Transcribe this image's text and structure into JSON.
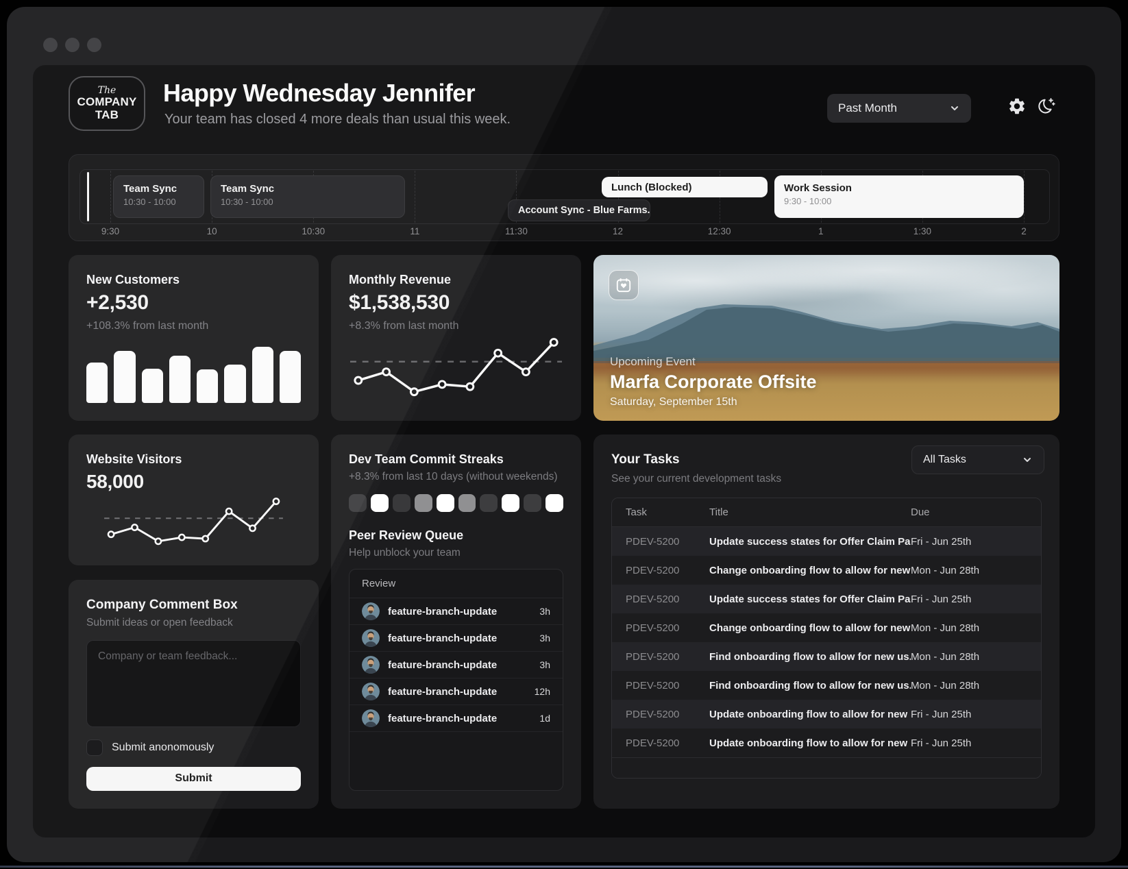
{
  "header": {
    "logo_line1": "The",
    "logo_line2": "COMPANY",
    "logo_line3": "TAB",
    "greeting": "Happy Wednesday Jennifer",
    "subtitle": "Your team has closed 4 more deals than usual this week.",
    "period_select": "Past Month"
  },
  "timeline": {
    "ticks": [
      "9:30",
      "10",
      "10:30",
      "11",
      "11:30",
      "12",
      "12:30",
      "1",
      "1:30",
      "2"
    ],
    "events": [
      {
        "title": "Team Sync",
        "time": "10:30 - 10:00",
        "variant": "dark",
        "compact": false
      },
      {
        "title": "Team Sync",
        "time": "10:30 - 10:00",
        "variant": "dark",
        "compact": false
      },
      {
        "title": "Account Sync - Blue Farms...",
        "time": "",
        "variant": "dark",
        "compact": true
      },
      {
        "title": "Lunch (Blocked)",
        "time": "",
        "variant": "light",
        "compact": true
      },
      {
        "title": "Work Session",
        "time": "9:30 - 10:00",
        "variant": "light",
        "compact": false
      }
    ]
  },
  "new_customers": {
    "title": "New Customers",
    "value": "+2,530",
    "delta": "+108.3% from last month"
  },
  "monthly_revenue": {
    "title": "Monthly Revenue",
    "value": "$1,538,530",
    "delta": "+8.3% from last month"
  },
  "website_visitors": {
    "title": "Website Visitors",
    "value": "58,000"
  },
  "upcoming_event": {
    "label": "Upcoming Event",
    "title": "Marfa Corporate Offsite",
    "date": "Saturday, September 15th"
  },
  "commit_streaks": {
    "title": "Dev Team Commit Streaks",
    "subtitle": "+8.3% from last 10 days (without weekends)",
    "squares": [
      "#3d3d3f",
      "#ffffff",
      "#39393b",
      "#909092",
      "#ffffff",
      "#909092",
      "#3d3d3f",
      "#ffffff",
      "#3d3d3f",
      "#ffffff"
    ]
  },
  "peer_review": {
    "title": "Peer Review Queue",
    "subtitle": "Help unblock your team",
    "column": "Review",
    "rows": [
      {
        "branch": "feature-branch-update",
        "age": "3h"
      },
      {
        "branch": "feature-branch-update",
        "age": "3h"
      },
      {
        "branch": "feature-branch-update",
        "age": "3h"
      },
      {
        "branch": "feature-branch-update",
        "age": "12h"
      },
      {
        "branch": "feature-branch-update",
        "age": "1d"
      }
    ]
  },
  "comment_box": {
    "title": "Company Comment Box",
    "subtitle": "Submit ideas or open feedback",
    "placeholder": "Company or team feedback...",
    "checkbox_label": "Submit anonomously",
    "submit_label": "Submit"
  },
  "tasks": {
    "title": "Your Tasks",
    "subtitle": "See your current development tasks",
    "filter_select": "All Tasks",
    "columns": [
      "Task",
      "Title",
      "Due"
    ],
    "rows": [
      {
        "id": "PDEV-5200",
        "title": "Update success states for Offer Claim Page...",
        "due": "Fri - Jun 25th"
      },
      {
        "id": "PDEV-5200",
        "title": "Change onboarding flow to allow for new us...",
        "due": "Mon - Jun 28th"
      },
      {
        "id": "PDEV-5200",
        "title": "Update success states for Offer Claim Page...",
        "due": "Fri - Jun 25th"
      },
      {
        "id": "PDEV-5200",
        "title": "Change onboarding flow to allow for new us...",
        "due": "Mon - Jun 28th"
      },
      {
        "id": "PDEV-5200",
        "title": "Find onboarding flow to allow for new us...",
        "due": "Mon - Jun 28th"
      },
      {
        "id": "PDEV-5200",
        "title": "Find onboarding flow to allow for new us...",
        "due": "Mon - Jun 28th"
      },
      {
        "id": "PDEV-5200",
        "title": "Update onboarding flow to allow for new us...",
        "due": "Fri - Jun 25th"
      },
      {
        "id": "PDEV-5200",
        "title": "Update onboarding flow to allow for new us...",
        "due": "Fri - Jun 25th"
      }
    ]
  },
  "chart_data": [
    {
      "type": "bar",
      "title": "New Customers",
      "values": [
        59,
        76,
        50,
        69,
        49,
        56,
        82,
        76
      ]
    },
    {
      "type": "line",
      "title": "Monthly Revenue",
      "values": [
        30,
        45,
        10,
        23,
        19,
        78,
        45,
        97
      ],
      "threshold": 63
    },
    {
      "type": "line",
      "title": "Website Visitors",
      "values": [
        20,
        36,
        4,
        13,
        10,
        73,
        34,
        96
      ],
      "threshold": 57
    },
    {
      "type": "heatmap",
      "title": "Dev Team Commit Streaks",
      "values": [
        "#3d3d3f",
        "#ffffff",
        "#39393b",
        "#909092",
        "#ffffff",
        "#909092",
        "#3d3d3f",
        "#ffffff",
        "#3d3d3f",
        "#ffffff"
      ]
    }
  ]
}
